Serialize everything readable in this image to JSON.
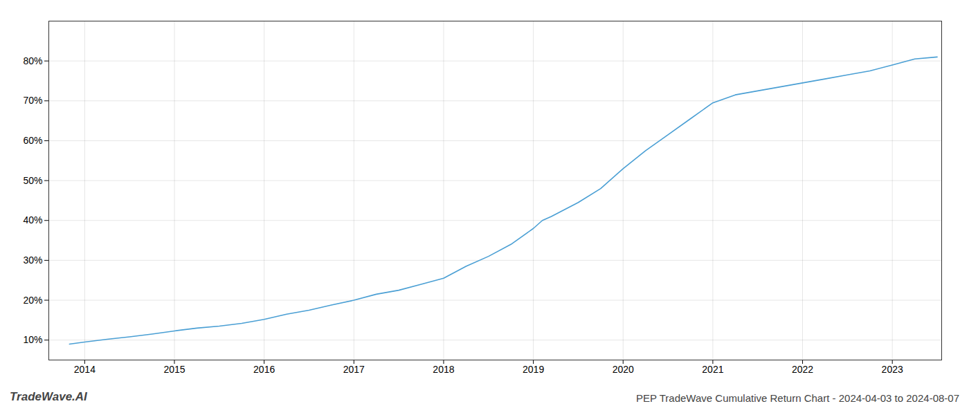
{
  "chart_data": {
    "type": "line",
    "title": "PEP TradeWave Cumulative Return Chart - 2024-04-03 to 2024-08-07",
    "annotations": [
      "TradeWave.AI"
    ],
    "x": [
      2013.83,
      2014.0,
      2014.25,
      2014.5,
      2014.75,
      2015.0,
      2015.25,
      2015.5,
      2015.75,
      2016.0,
      2016.25,
      2016.5,
      2016.75,
      2017.0,
      2017.25,
      2017.5,
      2017.75,
      2018.0,
      2018.25,
      2018.5,
      2018.75,
      2019.0,
      2019.1,
      2019.2,
      2019.5,
      2019.75,
      2020.0,
      2020.25,
      2020.5,
      2020.75,
      2021.0,
      2021.25,
      2021.5,
      2021.75,
      2022.0,
      2022.25,
      2022.5,
      2022.75,
      2023.0,
      2023.25,
      2023.5
    ],
    "values": [
      9.0,
      9.5,
      10.2,
      10.8,
      11.5,
      12.3,
      13.0,
      13.5,
      14.2,
      15.2,
      16.5,
      17.5,
      18.8,
      20.0,
      21.5,
      22.5,
      24.0,
      25.5,
      28.5,
      31.0,
      34.0,
      38.0,
      40.0,
      41.0,
      44.5,
      48.0,
      53.0,
      57.5,
      61.5,
      65.5,
      69.5,
      71.5,
      72.5,
      73.5,
      74.5,
      75.5,
      76.5,
      77.5,
      79.0,
      80.5,
      81.0
    ],
    "color": "#4a9fd4",
    "xlim": [
      2013.6,
      2023.55
    ],
    "ylim": [
      5,
      90
    ],
    "xticks": [
      2014,
      2015,
      2016,
      2017,
      2018,
      2019,
      2020,
      2021,
      2022,
      2023
    ],
    "yticks": [
      {
        "value": 10,
        "label": "10%"
      },
      {
        "value": 20,
        "label": "20%"
      },
      {
        "value": 30,
        "label": "30%"
      },
      {
        "value": 40,
        "label": "40%"
      },
      {
        "value": 50,
        "label": "50%"
      },
      {
        "value": 60,
        "label": "60%"
      },
      {
        "value": 70,
        "label": "70%"
      },
      {
        "value": 80,
        "label": "80%"
      }
    ],
    "grid": true
  }
}
